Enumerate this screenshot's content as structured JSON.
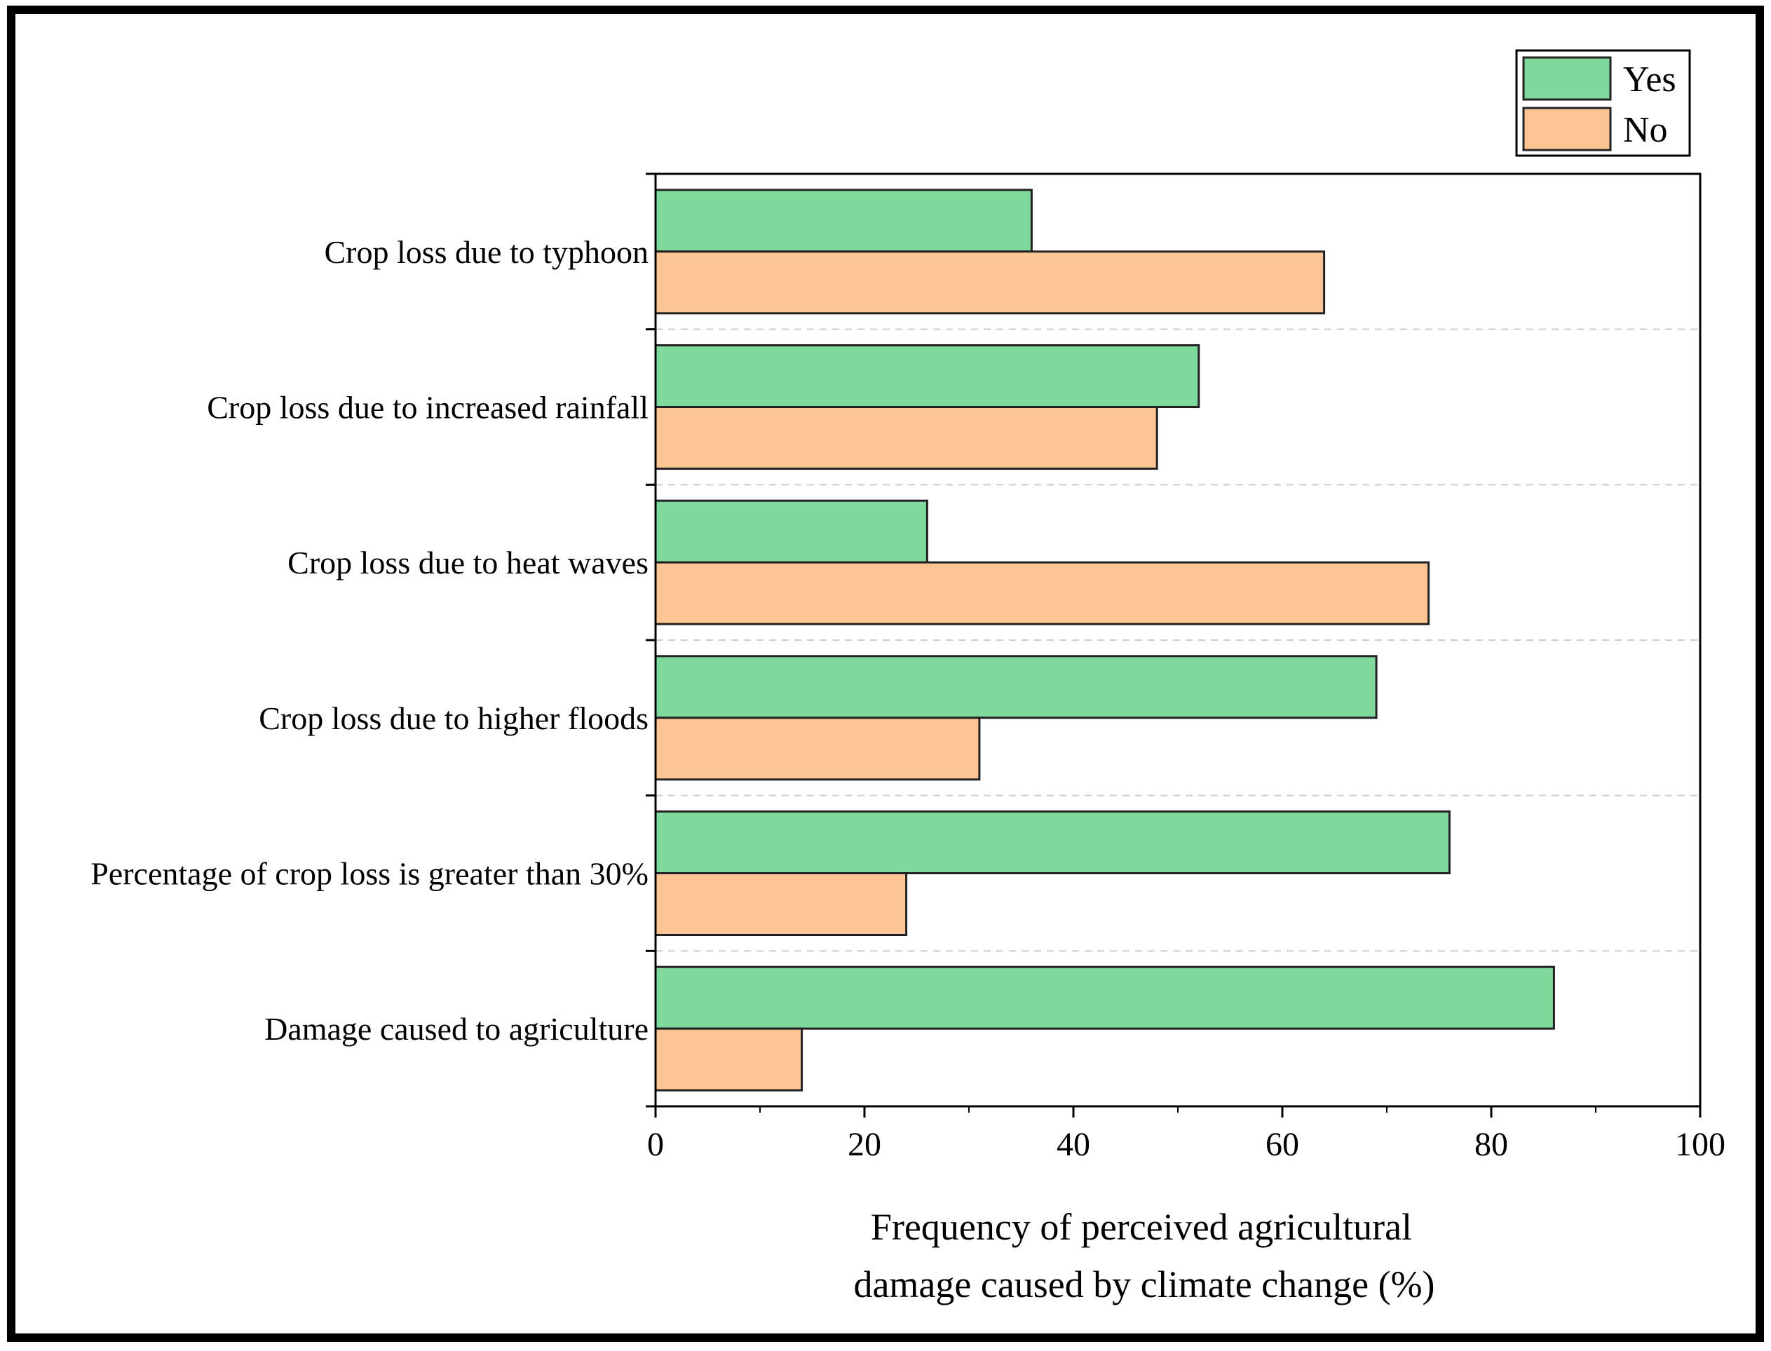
{
  "chart_data": {
    "type": "bar",
    "orientation": "horizontal",
    "categories": [
      "Crop loss due to typhoon",
      "Crop loss due to increased rainfall",
      "Crop loss due to heat waves",
      "Crop loss due to higher floods",
      "Percentage of crop loss is greater than 30%",
      "Damage caused to agriculture"
    ],
    "series": [
      {
        "name": "Yes",
        "color": "#7fd89c",
        "values": [
          36,
          52,
          26,
          69,
          76,
          86
        ]
      },
      {
        "name": "No",
        "color": "#fdc594",
        "values": [
          64,
          48,
          74,
          31,
          24,
          14
        ]
      }
    ],
    "title": "",
    "xlabel_lines": [
      "Frequency of perceived agricultural",
      "damage caused by climate change (%)"
    ],
    "ylabel": "",
    "xlim": [
      0,
      100
    ],
    "xticks": [
      0,
      20,
      40,
      60,
      80,
      100
    ],
    "grid": "horizontal-dashed",
    "legend_position": "top-right",
    "frame_color": "#000000",
    "grid_color": "#cccccc"
  }
}
